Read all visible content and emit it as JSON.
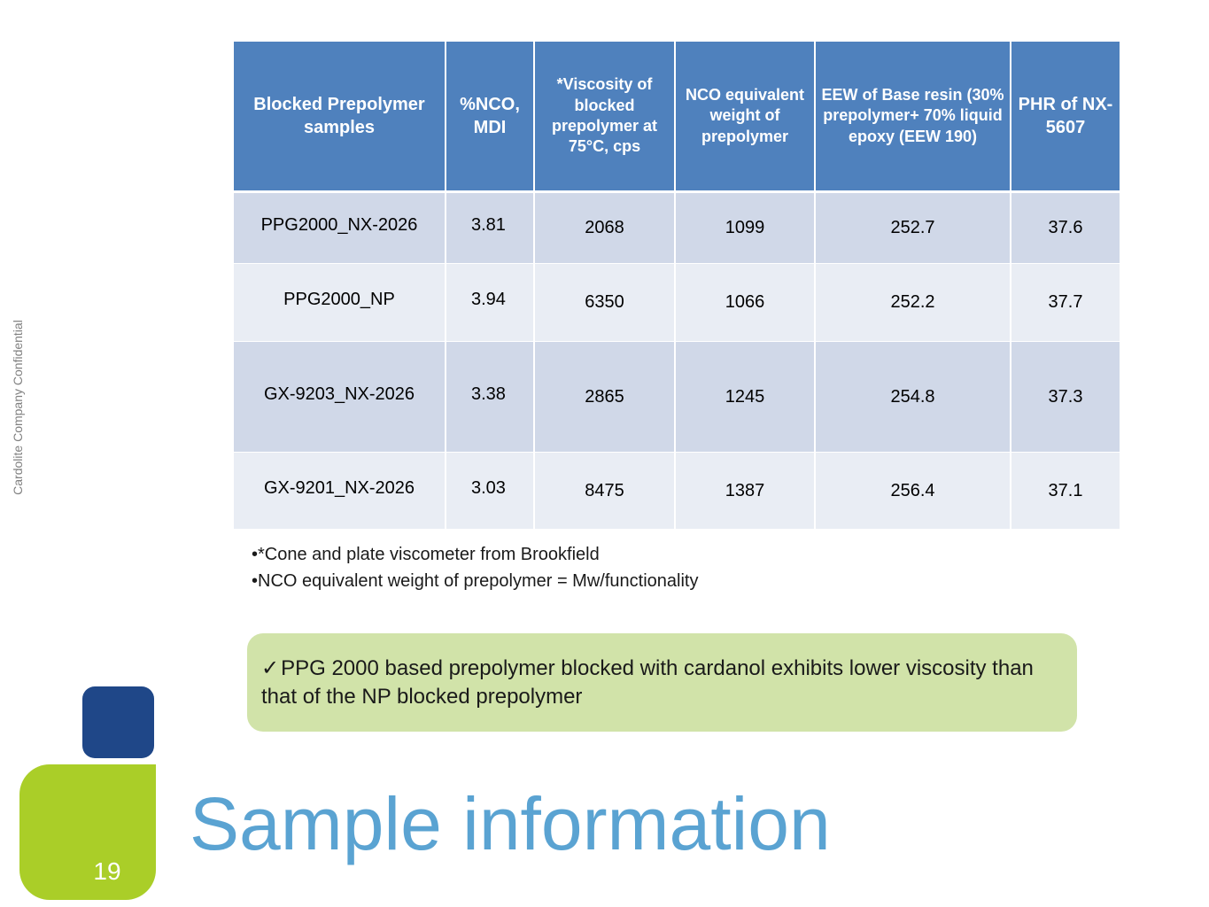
{
  "slide": {
    "confidential_label": "Cardolite Company Confidential",
    "title": "Sample information",
    "page_number": "19"
  },
  "table": {
    "headers": [
      "Blocked Prepolymer samples",
      "%NCO, MDI",
      "*Viscosity of blocked prepolymer at 75°C, cps",
      "NCO equivalent weight of prepolymer",
      "EEW of Base resin (30% prepolymer+ 70% liquid epoxy (EEW 190)",
      "PHR of NX-5607"
    ],
    "rows": [
      [
        "PPG2000_NX-2026",
        "3.81",
        "2068",
        "1099",
        "252.7",
        "37.6"
      ],
      [
        "PPG2000_NP",
        "3.94",
        "6350",
        "1066",
        "252.2",
        "37.7"
      ],
      [
        "GX-9203_NX-2026",
        "3.38",
        "2865",
        "1245",
        "254.8",
        "37.3"
      ],
      [
        "GX-9201_NX-2026",
        "3.03",
        "8475",
        "1387",
        "256.4",
        "37.1"
      ]
    ]
  },
  "notes": [
    "•*Cone and plate viscometer from Brookfield",
    "•NCO equivalent weight of prepolymer = Mw/functionality"
  ],
  "callout": {
    "icon": "checkmark-icon",
    "text": "PPG 2000 based prepolymer blocked with cardanol exhibits lower viscosity than that of the NP blocked prepolymer"
  },
  "colors": {
    "header_blue": "#4f81bd",
    "row_dark": "#d0d8e8",
    "row_light": "#e9edf4",
    "callout_green": "#d1e3a9",
    "deco_navy": "#1f4788",
    "deco_green": "#aace28",
    "title_blue": "#5aa3d2"
  }
}
